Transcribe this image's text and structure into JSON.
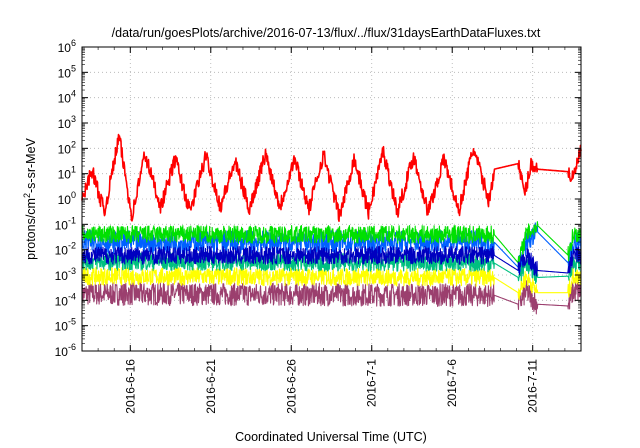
{
  "chart_data": {
    "type": "line",
    "title": "/data/run/goesPlots/archive/2016-07-13/flux/../flux/31daysEarthDataFluxes.txt",
    "xlabel": "Coordinated Universal Time (UTC)",
    "ylabel": {
      "pre": "protons/cm",
      "sup": "2",
      "post": "-s-sr-MeV"
    },
    "x_tick_labels": [
      "2016-6-16",
      "2016-6-21",
      "2016-6-26",
      "2016-7-1",
      "2016-7-6",
      "2016-7-11"
    ],
    "y_tick_labels": [
      {
        "base": "10",
        "exp": "-6"
      },
      {
        "base": "10",
        "exp": "-5"
      },
      {
        "base": "10",
        "exp": "-4"
      },
      {
        "base": "10",
        "exp": "-3"
      },
      {
        "base": "10",
        "exp": "-2"
      },
      {
        "base": "10",
        "exp": "-1"
      },
      {
        "base": "10",
        "exp": "0"
      },
      {
        "base": "10",
        "exp": "1"
      },
      {
        "base": "10",
        "exp": "2"
      },
      {
        "base": "10",
        "exp": "3"
      },
      {
        "base": "10",
        "exp": "4"
      },
      {
        "base": "10",
        "exp": "5"
      },
      {
        "base": "10",
        "exp": "6"
      }
    ],
    "x_range": [
      "2016-06-13",
      "2016-07-14"
    ],
    "x_ticks": [
      "2016-06-16",
      "2016-06-21",
      "2016-06-26",
      "2016-07-01",
      "2016-07-06",
      "2016-07-11"
    ],
    "y_scale": "log",
    "ylim": [
      1e-06,
      1000000.0
    ],
    "grid": true,
    "series": [
      {
        "color": "#9b3f6e",
        "base": 0.00018,
        "spread": 0.45,
        "points": [
          [
            "2016-06-13",
            0.00018
          ],
          [
            "2016-07-08.6",
            0.00016
          ],
          [
            "2016-07-10.1",
            7e-05
          ],
          [
            "2016-07-10.6",
            0.00022
          ],
          [
            "2016-07-11.3",
            7e-05
          ],
          [
            "2016-07-13.2",
            6e-05
          ],
          [
            "2016-07-13.5",
            0.00022
          ],
          [
            "2016-07-14",
            0.00022
          ]
        ]
      },
      {
        "color": "#ffff00",
        "base": 0.0009,
        "spread": 0.35,
        "points": [
          [
            "2016-06-13",
            0.0009
          ],
          [
            "2016-07-08.6",
            0.0008
          ],
          [
            "2016-07-10.1",
            0.0002
          ],
          [
            "2016-07-10.6",
            0.0009
          ],
          [
            "2016-07-11.3",
            0.0002
          ],
          [
            "2016-07-13.2",
            0.0002
          ],
          [
            "2016-07-13.5",
            0.0009
          ],
          [
            "2016-07-14",
            0.0009
          ]
        ]
      },
      {
        "color": "#00c080",
        "base": 0.0035,
        "spread": 0.35,
        "points": [
          [
            "2016-06-13",
            0.0035
          ],
          [
            "2016-07-08.6",
            0.003
          ],
          [
            "2016-07-10.1",
            0.0008
          ],
          [
            "2016-07-10.6",
            0.003
          ],
          [
            "2016-07-11.3",
            0.0008
          ],
          [
            "2016-07-13.2",
            0.0009
          ],
          [
            "2016-07-13.5",
            0.003
          ],
          [
            "2016-07-14",
            0.003
          ]
        ]
      },
      {
        "color": "#0060ff",
        "base": 0.02,
        "spread": 0.45,
        "points": [
          [
            "2016-06-13",
            0.02
          ],
          [
            "2016-07-08.6",
            0.02
          ],
          [
            "2016-07-10.1",
            0.002
          ],
          [
            "2016-07-10.6",
            0.02
          ],
          [
            "2016-07-11.3",
            0.05
          ],
          [
            "2016-07-13.2",
            0.003
          ],
          [
            "2016-07-13.5",
            0.02
          ],
          [
            "2016-07-14",
            0.02
          ]
        ]
      },
      {
        "color": "#00e000",
        "base": 0.04,
        "spread": 0.35,
        "points": [
          [
            "2016-06-13",
            0.04
          ],
          [
            "2016-07-08.6",
            0.04
          ],
          [
            "2016-07-10.1",
            0.003
          ],
          [
            "2016-07-10.6",
            0.04
          ],
          [
            "2016-07-11.3",
            0.09
          ],
          [
            "2016-07-13.2",
            0.006
          ],
          [
            "2016-07-13.5",
            0.04
          ],
          [
            "2016-07-14",
            0.04
          ]
        ]
      },
      {
        "color": "#0000c0",
        "base": 0.006,
        "spread": 0.35,
        "points": [
          [
            "2016-06-13",
            0.006
          ],
          [
            "2016-07-08.6",
            0.006
          ],
          [
            "2016-07-10.1",
            0.0015
          ],
          [
            "2016-07-10.6",
            0.006
          ],
          [
            "2016-07-11.3",
            0.0015
          ],
          [
            "2016-07-13.2",
            0.0012
          ],
          [
            "2016-07-13.5",
            0.006
          ],
          [
            "2016-07-14",
            0.006
          ]
        ]
      },
      {
        "color": "#ff0000",
        "base": 2,
        "spread": 0.3,
        "points": [
          [
            "2016-06-13",
            0.8
          ],
          [
            "2016-06-13.6",
            15
          ],
          [
            "2016-06-14.4",
            0.3
          ],
          [
            "2016-06-15.3",
            300
          ],
          [
            "2016-06-16.1",
            0.2
          ],
          [
            "2016-06-16.9",
            60
          ],
          [
            "2016-06-17.9",
            0.5
          ],
          [
            "2016-06-18.8",
            40
          ],
          [
            "2016-06-19.7",
            0.3
          ],
          [
            "2016-06-20.7",
            50
          ],
          [
            "2016-06-21.6",
            0.5
          ],
          [
            "2016-06-22.5",
            30
          ],
          [
            "2016-06-23.4",
            0.4
          ],
          [
            "2016-06-24.4",
            60
          ],
          [
            "2016-06-25.3",
            0.5
          ],
          [
            "2016-06-26.2",
            40
          ],
          [
            "2016-06-27.1",
            0.4
          ],
          [
            "2016-06-28.0",
            60
          ],
          [
            "2016-06-29.0",
            0.2
          ],
          [
            "2016-06-29.9",
            40
          ],
          [
            "2016-06-30.8",
            0.3
          ],
          [
            "2016-07-01.7",
            80
          ],
          [
            "2016-07-02.6",
            0.3
          ],
          [
            "2016-07-03.6",
            50
          ],
          [
            "2016-07-04.5",
            0.3
          ],
          [
            "2016-07-05.5",
            40
          ],
          [
            "2016-07-06.4",
            0.3
          ],
          [
            "2016-07-07.3",
            100
          ],
          [
            "2016-07-08.3",
            0.8
          ],
          [
            "2016-07-08.6",
            15
          ],
          [
            "2016-07-10.1",
            25
          ],
          [
            "2016-07-10.5",
            1.5
          ],
          [
            "2016-07-10.9",
            25
          ],
          [
            "2016-07-11.3",
            15
          ],
          [
            "2016-07-13.2",
            12
          ],
          [
            "2016-07-13.5",
            6
          ],
          [
            "2016-07-14",
            90
          ]
        ]
      }
    ]
  }
}
